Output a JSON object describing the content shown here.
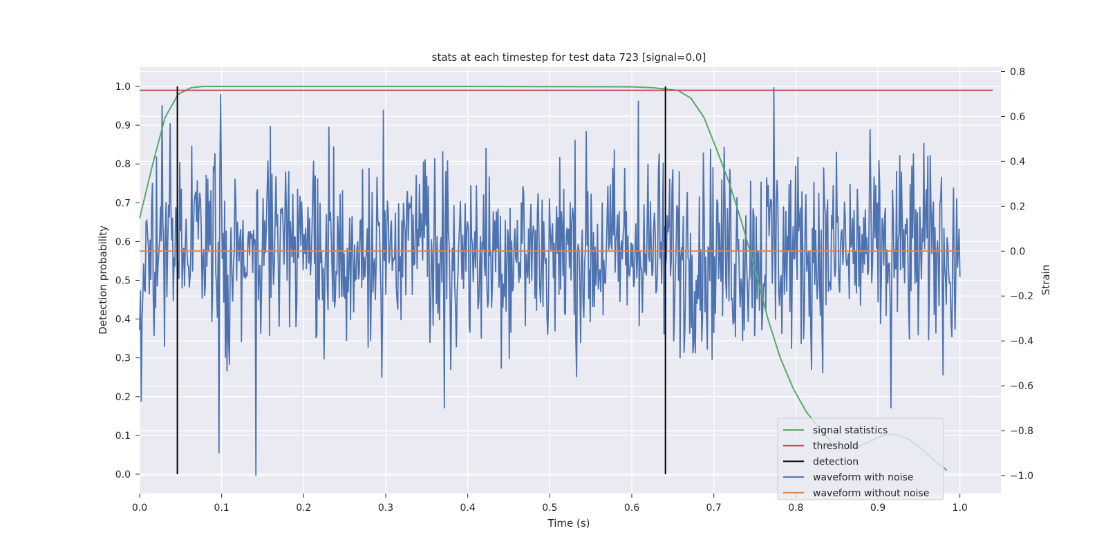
{
  "chart_data": {
    "type": "line",
    "title": "stats at each timestep for test data 723 [signal=0.0]",
    "xlabel": "Time (s)",
    "ylabel_left": "Detection probability",
    "ylabel_right": "Strain",
    "xlim": [
      0.0,
      1.05
    ],
    "ylim_left": [
      -0.05,
      1.05
    ],
    "ylim_right": [
      -1.08,
      0.82
    ],
    "x_ticks": [
      0.0,
      0.1,
      0.2,
      0.3,
      0.4,
      0.5,
      0.6,
      0.7,
      0.8,
      0.9,
      1.0
    ],
    "x_tick_labels": [
      "0.0",
      "0.1",
      "0.2",
      "0.3",
      "0.4",
      "0.5",
      "0.6",
      "0.7",
      "0.8",
      "0.9",
      "1.0"
    ],
    "y_left_ticks": [
      0.0,
      0.1,
      0.2,
      0.3,
      0.4,
      0.5,
      0.6,
      0.7,
      0.8,
      0.9,
      1.0
    ],
    "y_left_tick_labels": [
      "0.0",
      "0.1",
      "0.2",
      "0.3",
      "0.4",
      "0.5",
      "0.6",
      "0.7",
      "0.8",
      "0.9",
      "1.0"
    ],
    "y_right_ticks": [
      -1.0,
      -0.8,
      -0.6,
      -0.4,
      -0.2,
      0.0,
      0.2,
      0.4,
      0.6,
      0.8
    ],
    "y_right_tick_labels": [
      "−1.0",
      "−0.8",
      "−0.6",
      "−0.4",
      "−0.2",
      "0.0",
      "0.2",
      "0.4",
      "0.6",
      "0.8"
    ],
    "grid": true,
    "background": "#eaeaf2",
    "legend_position": "bottom-right",
    "series": [
      {
        "name": "signal statistics",
        "axis": "left",
        "color": "#55a868",
        "x": [
          0.0,
          0.016,
          0.031,
          0.047,
          0.063,
          0.078,
          0.094,
          0.2,
          0.4,
          0.6,
          0.625,
          0.641,
          0.656,
          0.672,
          0.688,
          0.703,
          0.719,
          0.734,
          0.75,
          0.766,
          0.781,
          0.797,
          0.813,
          0.828,
          0.844,
          0.859,
          0.875,
          0.891,
          0.906,
          0.922,
          0.938,
          0.953,
          0.969,
          0.984
        ],
        "y": [
          0.66,
          0.8,
          0.92,
          0.98,
          0.997,
          1.0,
          1.0,
          1.0,
          1.0,
          0.999,
          0.997,
          0.993,
          0.99,
          0.97,
          0.92,
          0.84,
          0.75,
          0.65,
          0.53,
          0.4,
          0.3,
          0.22,
          0.16,
          0.12,
          0.08,
          0.065,
          0.07,
          0.085,
          0.1,
          0.103,
          0.09,
          0.065,
          0.035,
          0.01
        ]
      },
      {
        "name": "threshold",
        "axis": "left",
        "color": "#c44e52",
        "x": [
          0.0,
          1.04
        ],
        "y": [
          0.99,
          0.99
        ]
      },
      {
        "name": "detection",
        "axis": "left",
        "color": "#000000",
        "segments": [
          {
            "x": [
              0.046,
              0.046
            ],
            "y": [
              0.0,
              1.0
            ]
          },
          {
            "x": [
              0.641,
              0.641
            ],
            "y": [
              0.0,
              1.0
            ]
          }
        ]
      },
      {
        "name": "waveform with noise",
        "axis": "right",
        "color": "#4c72b0",
        "x_start": 0.0,
        "x_end": 1.0,
        "notable_points": [
          {
            "x": 0.002,
            "y": -0.67
          },
          {
            "x": 0.027,
            "y": 0.65
          },
          {
            "x": 0.097,
            "y": -0.9
          },
          {
            "x": 0.099,
            "y": 0.7
          },
          {
            "x": 0.142,
            "y": -1.0
          },
          {
            "x": 0.297,
            "y": 0.63
          },
          {
            "x": 0.371,
            "y": -0.7
          },
          {
            "x": 0.608,
            "y": 0.67
          },
          {
            "x": 0.773,
            "y": 0.73
          },
          {
            "x": 0.916,
            "y": -0.7
          }
        ]
      },
      {
        "name": "waveform without noise",
        "axis": "right",
        "color": "#dd8452",
        "x": [
          0.0,
          1.0
        ],
        "y": [
          0.0,
          0.0
        ]
      }
    ]
  }
}
